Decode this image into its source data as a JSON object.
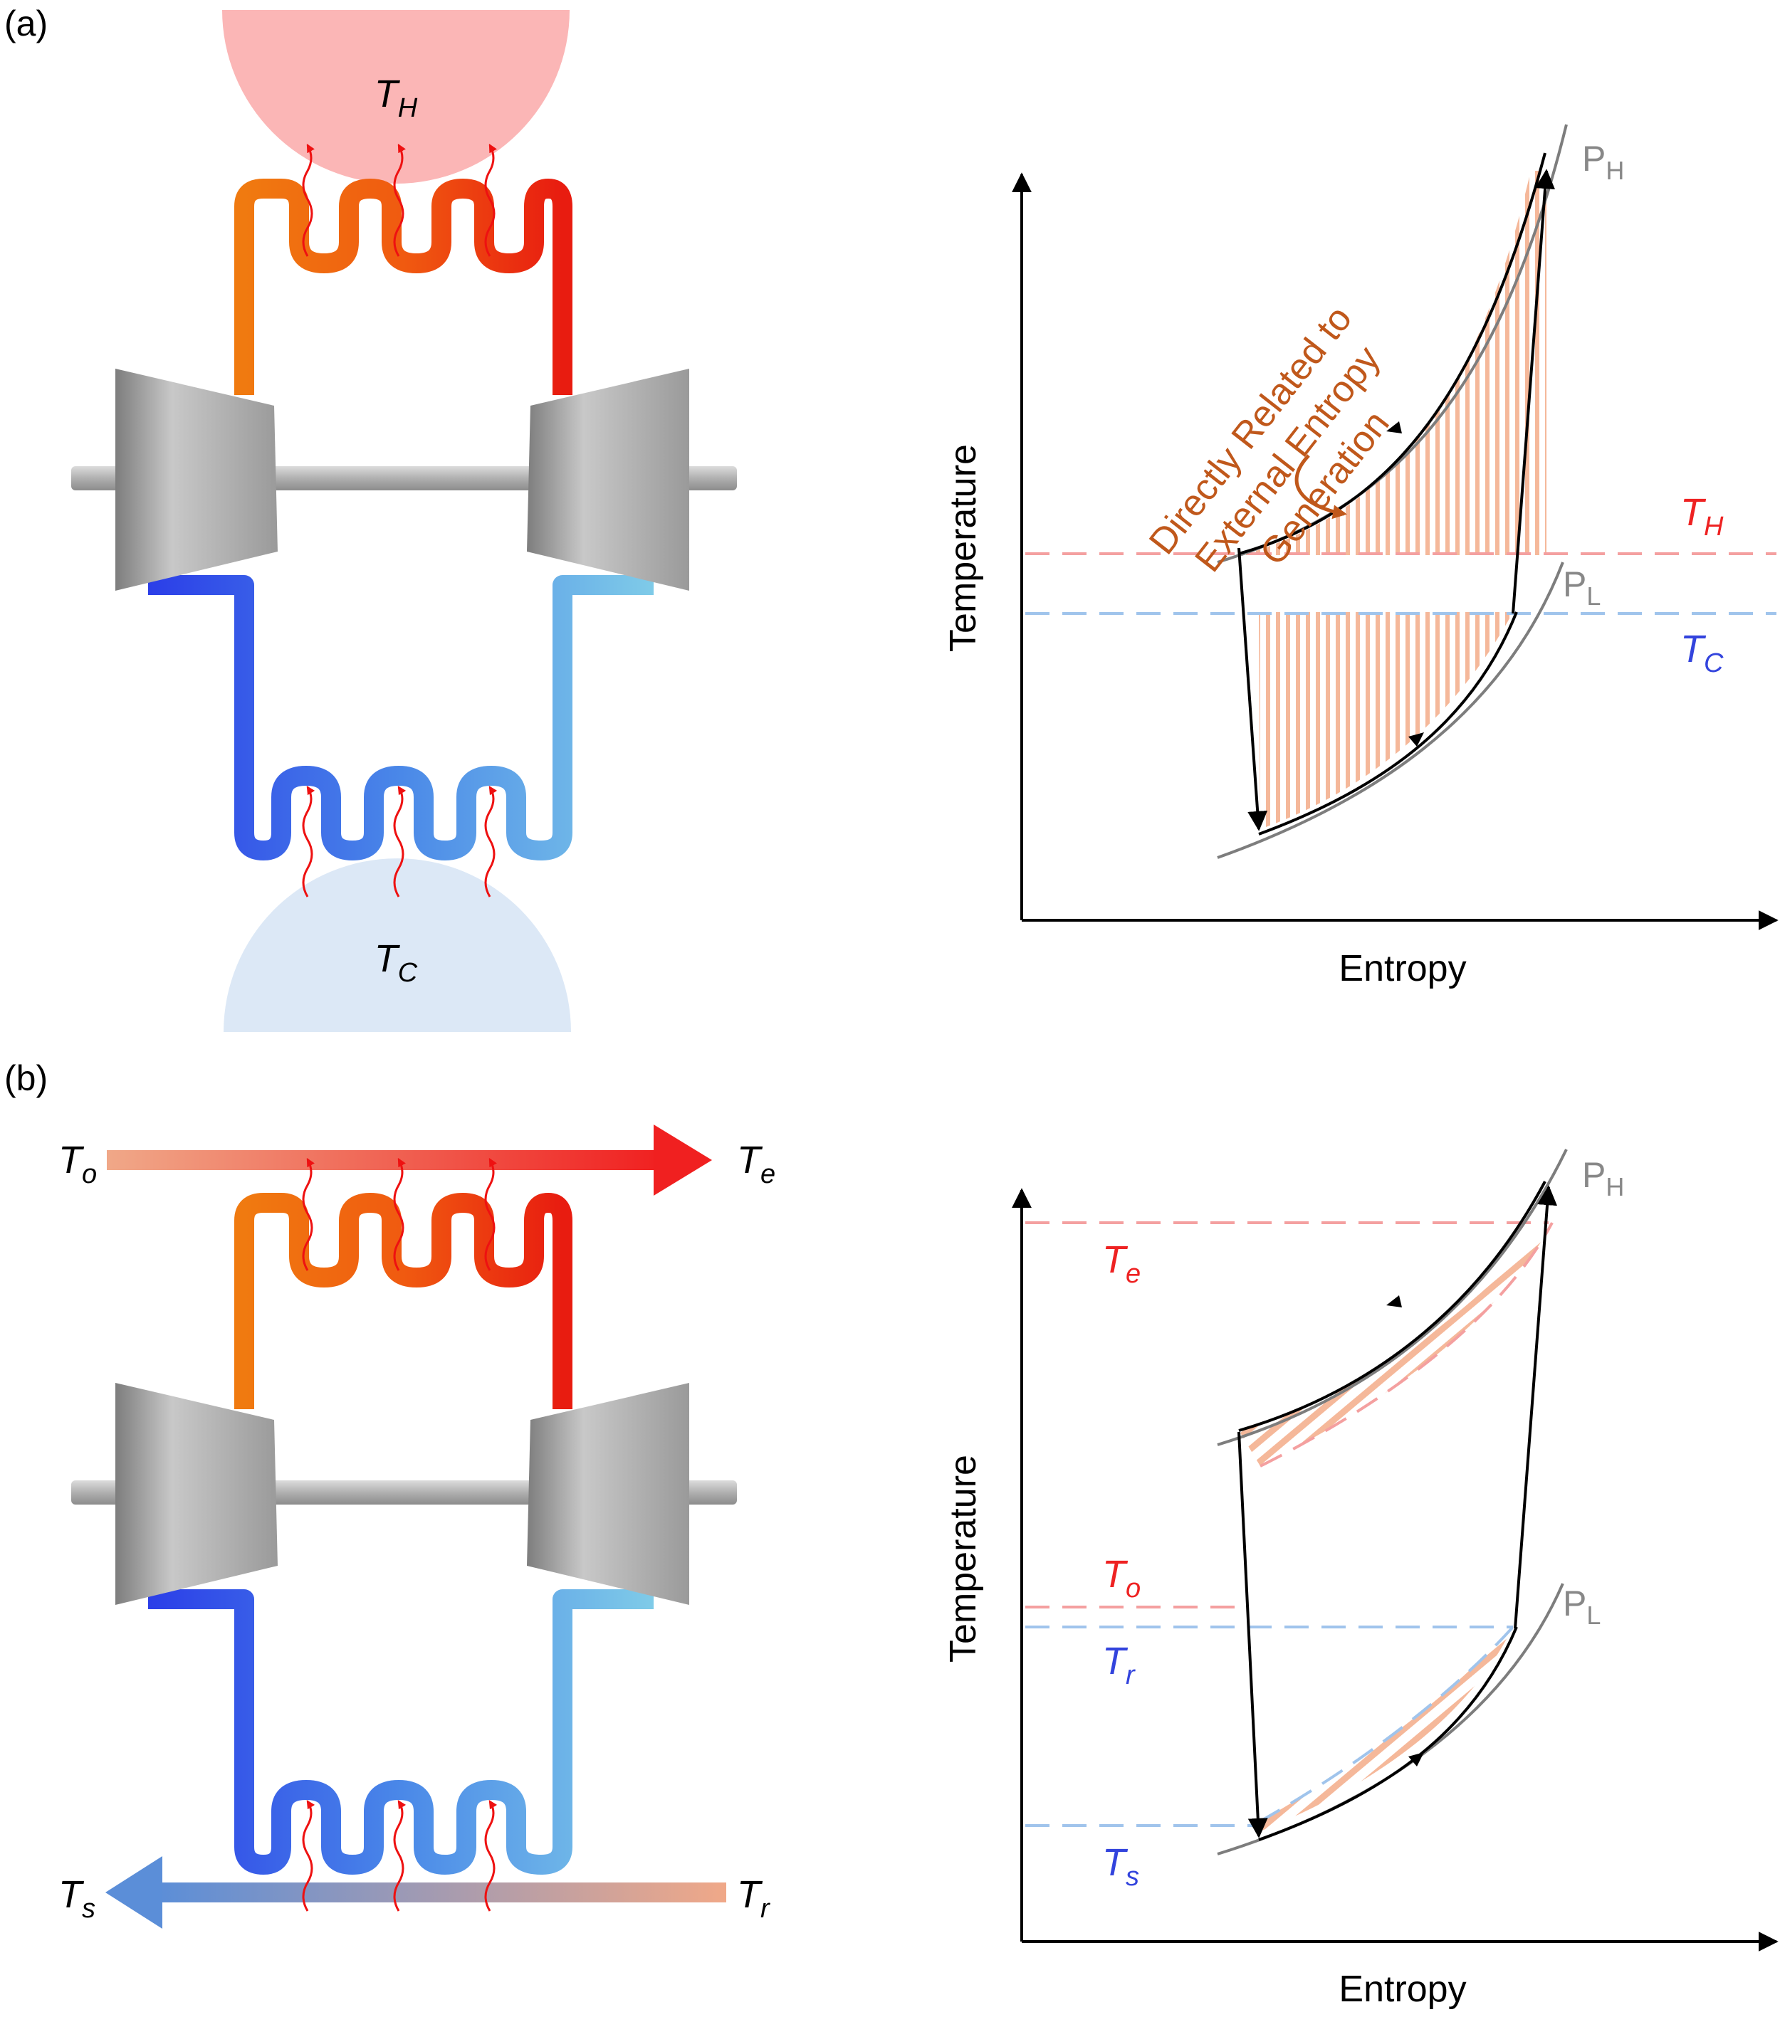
{
  "panels": {
    "a": {
      "label": "(a)",
      "hot_reservoir": {
        "T": "T",
        "sub": "H"
      },
      "cold_reservoir": {
        "T": "T",
        "sub": "C"
      },
      "chart": {
        "xlabel": "Entropy",
        "ylabel": "Temperature",
        "PH": {
          "P": "P",
          "sub": "H"
        },
        "PL": {
          "P": "P",
          "sub": "L"
        },
        "TH": {
          "T": "T",
          "sub": "H"
        },
        "TC": {
          "T": "T",
          "sub": "C"
        },
        "annotation": [
          "Directly Related to",
          "External Entropy",
          "Generation"
        ]
      }
    },
    "b": {
      "label": "(b)",
      "hot_stream": {
        "in": {
          "T": "T",
          "sub": "o"
        },
        "out": {
          "T": "T",
          "sub": "e"
        }
      },
      "cold_stream": {
        "in": {
          "T": "T",
          "sub": "r"
        },
        "out": {
          "T": "T",
          "sub": "s"
        }
      },
      "chart": {
        "xlabel": "Entropy",
        "ylabel": "Temperature",
        "PH": {
          "P": "P",
          "sub": "H"
        },
        "PL": {
          "P": "P",
          "sub": "L"
        },
        "Te": {
          "T": "T",
          "sub": "e"
        },
        "To": {
          "T": "T",
          "sub": "o"
        },
        "Tr": {
          "T": "T",
          "sub": "r"
        },
        "Ts": {
          "T": "T",
          "sub": "s"
        }
      }
    }
  },
  "colors": {
    "hot": "#ee2222",
    "hot_light": "#f4a0a0",
    "cold": "#3344dd",
    "cold_light": "#a0c4ec",
    "hatch": "#f5b89a",
    "annotation": "#c0581b",
    "gray": "#888888"
  }
}
